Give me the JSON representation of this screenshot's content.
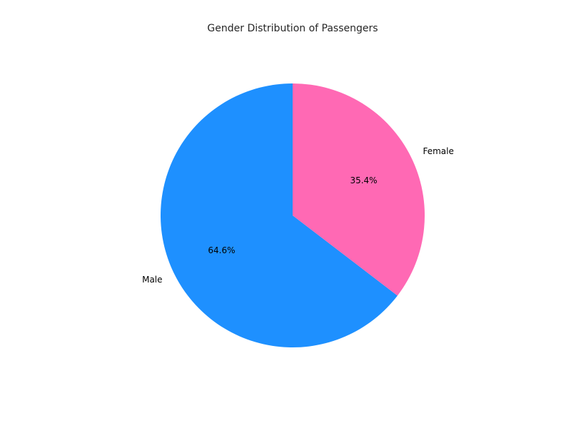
{
  "chart_data": {
    "type": "pie",
    "title": "Gender Distribution of Passengers",
    "categories": [
      "Male",
      "Female"
    ],
    "values": [
      64.6,
      35.4
    ],
    "value_labels": [
      "64.6%",
      "35.4%"
    ],
    "colors": [
      "#1E90FF",
      "#FF69B4"
    ],
    "start_angle": "top",
    "direction": "counterclockwise",
    "legend": "none"
  }
}
